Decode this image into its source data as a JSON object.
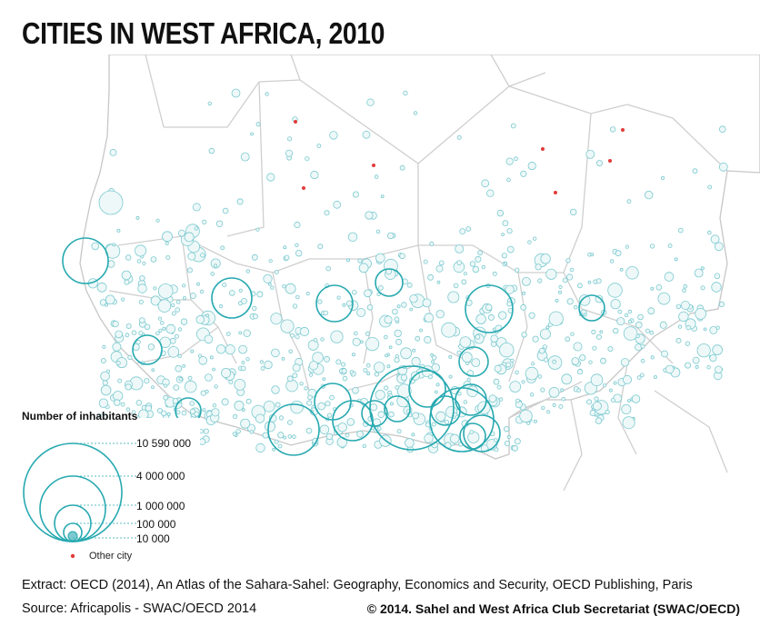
{
  "title": "CITIES IN WEST AFRICA, 2010",
  "legend": {
    "title": "Number of inhabitants",
    "sizes": [
      {
        "label": "10 590 000"
      },
      {
        "label": "4 000 000"
      },
      {
        "label": "1 000 000"
      },
      {
        "label": "100 000"
      },
      {
        "label": "10 000"
      }
    ],
    "other_city_label": "Other city"
  },
  "footer": {
    "extract": "Extract: OECD (2014), An Atlas of the Sahara-Sahel: Geography, Economics  and Security, OECD Publishing, Paris",
    "source": "Source: Africapolis - SWAC/OECD 2014",
    "copyright": "© 2014. Sahel and West Africa Club Secretariat (SWAC/OECD)"
  },
  "colors": {
    "city_stroke": "#27a9b0",
    "other_city": "#e23b3b",
    "border": "#cfcfcf"
  }
}
